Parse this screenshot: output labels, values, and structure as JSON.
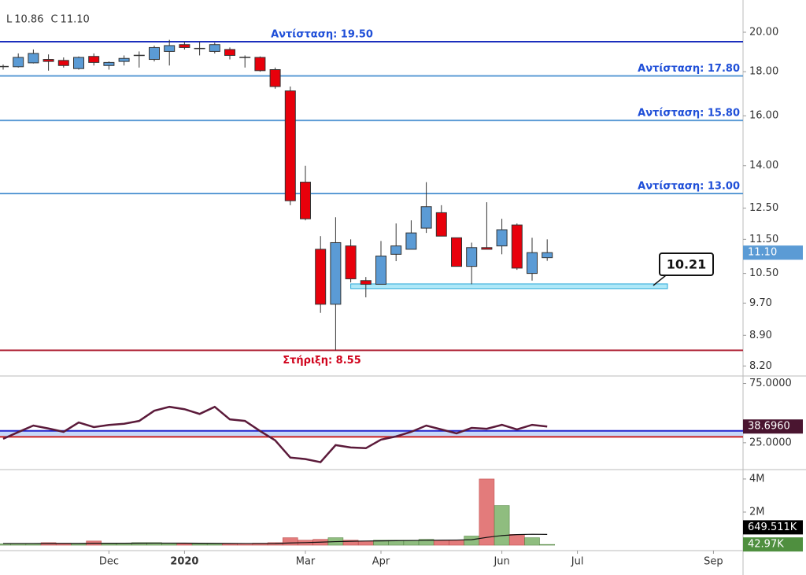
{
  "chart_data": [
    {
      "type": "candlestick",
      "log": true,
      "ylim": [
        8.0,
        21.8
      ],
      "yticks": [
        {
          "value": 20,
          "label": "20.00"
        },
        {
          "value": 18,
          "label": "18.00"
        },
        {
          "value": 16,
          "label": "16.00"
        },
        {
          "value": 14,
          "label": "14.00"
        },
        {
          "value": 12.5,
          "label": "12.50"
        },
        {
          "value": 11.5,
          "label": "11.50"
        },
        {
          "value": 10.5,
          "label": "10.50"
        },
        {
          "value": 9.7,
          "label": "9.70"
        },
        {
          "value": 8.9,
          "label": "8.90"
        },
        {
          "value": 8.2,
          "label": "8.20"
        }
      ],
      "categories": [
        null,
        null,
        null,
        null,
        null,
        null,
        null,
        "Dec",
        null,
        null,
        null,
        null,
        "2020",
        null,
        null,
        null,
        null,
        null,
        null,
        null,
        "Mar",
        null,
        null,
        null,
        null,
        "Apr",
        null,
        null,
        null,
        null,
        null,
        null,
        null,
        "Jun",
        null,
        null,
        null,
        null,
        "Jul",
        null,
        null,
        null,
        null,
        null,
        null,
        null,
        null,
        "Sep"
      ],
      "open": [
        18.2,
        18.24,
        18.43,
        18.6,
        18.55,
        18.15,
        18.75,
        18.3,
        18.5,
        18.75,
        18.6,
        19.0,
        19.35,
        19.1,
        19.0,
        19.1,
        18.7,
        18.7,
        18.1,
        17.1,
        13.4,
        11.2,
        9.67,
        11.3,
        10.3,
        10.2,
        11.05,
        11.2,
        11.85,
        12.35,
        11.55,
        10.7,
        11.25,
        11.3,
        11.95,
        10.5,
        10.95,
        null,
        null,
        null,
        null,
        null,
        null,
        null,
        null,
        null,
        null,
        null
      ],
      "high": [
        18.35,
        18.9,
        19.1,
        18.85,
        18.7,
        18.75,
        18.9,
        18.5,
        18.8,
        19.0,
        19.3,
        19.6,
        19.5,
        19.5,
        19.45,
        19.2,
        18.8,
        18.75,
        18.2,
        17.3,
        14.0,
        11.6,
        12.2,
        11.5,
        10.4,
        11.45,
        12.0,
        12.1,
        13.4,
        12.6,
        11.55,
        11.4,
        12.7,
        12.15,
        12.0,
        11.55,
        11.5,
        null,
        null,
        null,
        null,
        null,
        null,
        null,
        null,
        null,
        null,
        null
      ],
      "low": [
        18.1,
        18.2,
        18.4,
        18.05,
        18.2,
        18.1,
        18.3,
        18.1,
        18.3,
        18.2,
        18.5,
        18.3,
        19.1,
        18.8,
        18.9,
        18.6,
        18.2,
        18.0,
        17.2,
        12.6,
        12.1,
        9.45,
        8.55,
        10.25,
        9.85,
        10.2,
        10.85,
        11.2,
        11.7,
        11.6,
        10.7,
        10.2,
        11.2,
        11.05,
        10.6,
        10.3,
        10.86,
        null,
        null,
        null,
        null,
        null,
        null,
        null,
        null,
        null,
        null,
        null
      ],
      "close": [
        18.25,
        18.7,
        18.9,
        18.5,
        18.3,
        18.7,
        18.45,
        18.45,
        18.65,
        18.8,
        19.2,
        19.3,
        19.2,
        19.15,
        19.35,
        18.8,
        18.65,
        18.05,
        17.3,
        12.75,
        12.15,
        9.67,
        11.4,
        10.35,
        10.2,
        11.0,
        11.3,
        11.7,
        12.55,
        11.6,
        10.7,
        11.25,
        11.2,
        11.8,
        10.65,
        11.1,
        11.1,
        null,
        null,
        null,
        null,
        null,
        null,
        null,
        null,
        null,
        null,
        null
      ],
      "up_color": "#5b9bd5",
      "down_color": "#e8000b",
      "legend": [
        {
          "key": "L",
          "value_label": "10.86"
        },
        {
          "key": "C",
          "value_label": "11.10"
        }
      ],
      "last_value_label": "11.10",
      "levels": [
        {
          "name": "Αντίσταση: 19.50",
          "value": 19.5,
          "color": "#1c2fbd",
          "text_color": "#1f4fd8",
          "label_align": "center",
          "label_side": "above"
        },
        {
          "name": "Αντίσταση: 17.80",
          "value": 17.8,
          "color": "#5b9bd5",
          "text_color": "#1f4fd8",
          "label_align": "right",
          "label_side": "above"
        },
        {
          "name": "Αντίσταση: 15.80",
          "value": 15.8,
          "color": "#5b9bd5",
          "text_color": "#1f4fd8",
          "label_align": "right",
          "label_side": "above"
        },
        {
          "name": "Αντίσταση: 13.00",
          "value": 13.0,
          "color": "#5b9bd5",
          "text_color": "#1f4fd8",
          "label_align": "right",
          "label_side": "above"
        },
        {
          "name": "Στήριξη: 8.55",
          "value": 8.55,
          "color": "#b0283a",
          "text_color": "#d0021b",
          "label_align": "center",
          "label_side": "below"
        }
      ],
      "annotations": [
        {
          "value": 10.21,
          "color": "#aee8f8"
        }
      ]
    },
    {
      "type": "line",
      "ylim": [
        3,
        80
      ],
      "yticks": [
        {
          "value": 75,
          "label": "75.0000"
        },
        {
          "value": 25,
          "label": "25.0000"
        }
      ],
      "values": [
        28.3,
        34,
        39.5,
        37,
        34.2,
        42.1,
        38.2,
        40,
        41,
        43.4,
        52,
        55.3,
        53.3,
        49.3,
        55.3,
        44.7,
        43.4,
        34.9,
        27,
        12.5,
        11.2,
        8.6,
        23,
        21,
        20.4,
        27.6,
        30.3,
        34.2,
        39.5,
        36.2,
        32.9,
        37.5,
        36.8,
        40.1,
        36.2,
        40.1,
        38.696,
        null,
        null,
        null,
        null,
        null,
        null,
        null,
        null,
        null,
        null,
        null
      ],
      "color": "#5b1a3a",
      "last_value_label": "38.6960",
      "levels": [
        {
          "value": 35,
          "color": "#2222cc"
        },
        {
          "value": 30,
          "color": "#cc2222"
        }
      ],
      "band_color": "#c8d8f8"
    },
    {
      "type": "bar",
      "ylim": [
        -330000,
        4520000
      ],
      "yticks": [
        {
          "value": 4000000,
          "label": "4M"
        },
        {
          "value": 2000000,
          "label": "2M"
        }
      ],
      "values": [
        80000,
        80000,
        80000,
        150000,
        120000,
        80000,
        250000,
        100000,
        120000,
        150000,
        150000,
        100000,
        80000,
        80000,
        80000,
        80000,
        100000,
        120000,
        150000,
        450000,
        300000,
        350000,
        450000,
        300000,
        250000,
        300000,
        300000,
        300000,
        350000,
        300000,
        300000,
        550000,
        4000000,
        2400000,
        650000,
        450000,
        42970,
        null,
        null,
        null,
        null,
        null,
        null,
        null,
        null,
        null,
        null,
        null
      ],
      "ma": [
        100000,
        100000,
        100000,
        105000,
        105000,
        105000,
        115000,
        115000,
        115000,
        120000,
        125000,
        125000,
        120000,
        115000,
        110000,
        105000,
        100000,
        100000,
        105000,
        135000,
        155000,
        180000,
        215000,
        235000,
        250000,
        260000,
        270000,
        280000,
        290000,
        300000,
        310000,
        330000,
        470000,
        580000,
        640000,
        660000,
        649511,
        null,
        null,
        null,
        null,
        null,
        null,
        null,
        null,
        null,
        null,
        null
      ],
      "up_color": "#8fbd7f",
      "down_color": "#e37b7b",
      "ma_color": "#111",
      "last_value_label": "42.97K",
      "ma_last_label": "649.511K"
    }
  ]
}
